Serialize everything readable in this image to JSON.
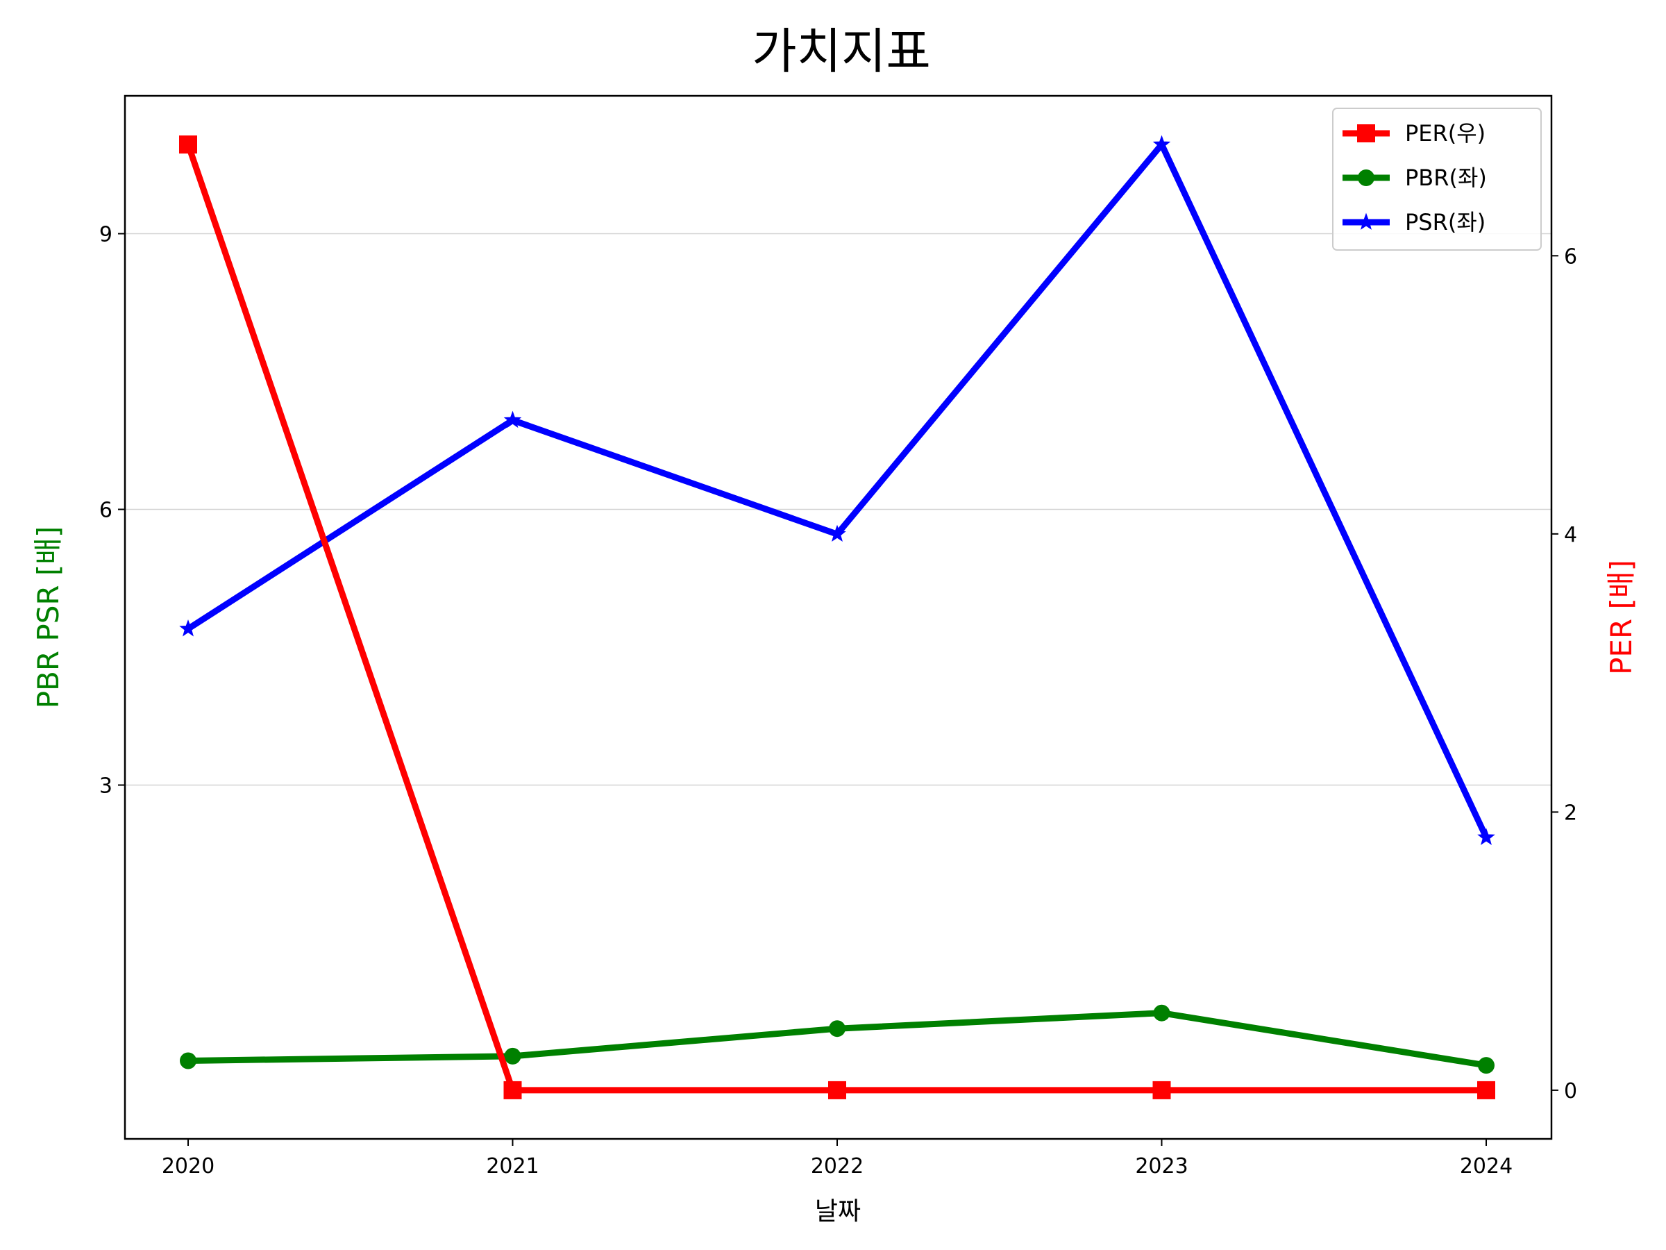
{
  "chart_data": {
    "type": "line",
    "title": "가치지표",
    "xlabel": "날짜",
    "ylabel_left": "PBR PSR [배]",
    "ylabel_right": "PER [배]",
    "categories": [
      "2020",
      "2021",
      "2022",
      "2023",
      "2024"
    ],
    "left_axis": {
      "ylim": [
        -0.85,
        10.5
      ],
      "ticks": [
        3,
        6,
        9
      ],
      "color": "#008000"
    },
    "right_axis": {
      "ylim": [
        -0.35,
        7.15
      ],
      "ticks": [
        0,
        2,
        4,
        6
      ],
      "color": "#ff0000"
    },
    "grid": true,
    "legend_position": "top-right",
    "series": [
      {
        "name": "PER(우)",
        "axis": "right",
        "color": "#ff0000",
        "marker": "square",
        "values": [
          6.8,
          0.0,
          0.0,
          0.0,
          0.0
        ]
      },
      {
        "name": "PBR(좌)",
        "axis": "left",
        "color": "#008000",
        "marker": "circle",
        "values": [
          0.0,
          0.05,
          0.35,
          0.52,
          -0.05
        ]
      },
      {
        "name": "PSR(좌)",
        "axis": "left",
        "color": "#0000ff",
        "marker": "star",
        "values": [
          4.7,
          6.97,
          5.73,
          9.97,
          2.43
        ]
      }
    ]
  }
}
